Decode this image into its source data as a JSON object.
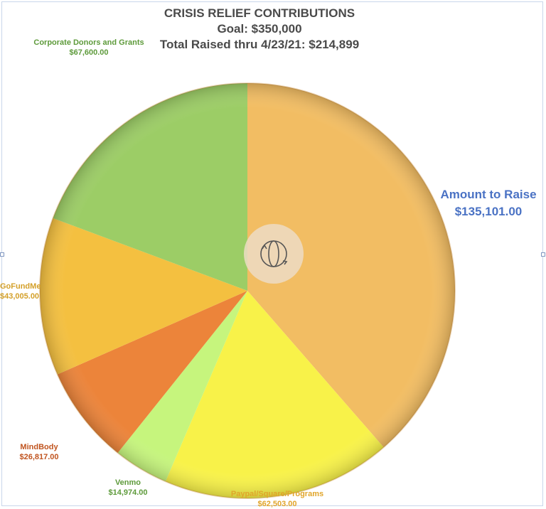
{
  "chart_data": {
    "type": "pie",
    "title": "CRISIS RELIEF CONTRIBUTIONS",
    "subtitle_goal": "Goal: $350,000",
    "subtitle_total": "Total Raised thru 4/23/21: $214,899",
    "slices": [
      {
        "name": "Amount  to Raise",
        "value": 135101.0,
        "value_label": "$135,101.00",
        "color": "#f2bd63"
      },
      {
        "name": "Paypal/Square/Programs",
        "value": 62503.0,
        "value_label": "$62,503.00",
        "color": "#f8f249"
      },
      {
        "name": "Venmo",
        "value": 14974.0,
        "value_label": "$14,974.00",
        "color": "#c6f57d"
      },
      {
        "name": "MindBody",
        "value": 26817.0,
        "value_label": "$26,817.00",
        "color": "#ec843a"
      },
      {
        "name": "GoFundMe",
        "value": 43005.0,
        "value_label": "$43,005.00",
        "color": "#f4c040"
      },
      {
        "name": "Corporate Donors  and Grants",
        "value": 67600.0,
        "value_label": "$67,600.00",
        "color": "#9ccd66"
      }
    ],
    "label_colors": {
      "Amount  to Raise": "#4a72c4",
      "Paypal/Square/Programs": "#e1a52a",
      "Venmo": "#5d9a3a",
      "MindBody": "#c0541f",
      "GoFundMe": "#d4a02a",
      "Corporate Donors  and Grants": "#5d9a3a"
    },
    "start_angle": "12 o'clock",
    "direction": "clockwise"
  }
}
